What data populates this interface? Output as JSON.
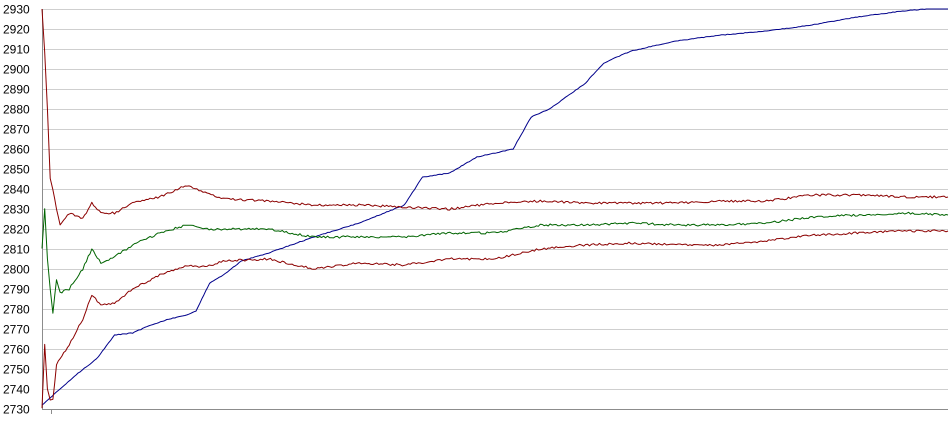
{
  "chart_data": {
    "type": "line",
    "title": "",
    "xlabel": "",
    "ylabel": "",
    "ylim": [
      2730,
      2930
    ],
    "yticks": [
      2930,
      2920,
      2910,
      2900,
      2890,
      2880,
      2870,
      2860,
      2850,
      2840,
      2830,
      2820,
      2810,
      2800,
      2790,
      2780,
      2770,
      2760,
      2750,
      2740,
      2730
    ],
    "grid": true,
    "legend": "none",
    "xlim": [
      0,
      1
    ],
    "series": [
      {
        "color": "#00008b",
        "points": [
          [
            0,
            2732
          ],
          [
            0.02,
            2740
          ],
          [
            0.04,
            2748
          ],
          [
            0.06,
            2755
          ],
          [
            0.08,
            2767
          ],
          [
            0.1,
            2768
          ],
          [
            0.12,
            2772
          ],
          [
            0.14,
            2775
          ],
          [
            0.16,
            2777
          ],
          [
            0.17,
            2779
          ],
          [
            0.185,
            2793
          ],
          [
            0.2,
            2797
          ],
          [
            0.22,
            2804
          ],
          [
            0.25,
            2808
          ],
          [
            0.3,
            2816
          ],
          [
            0.35,
            2823
          ],
          [
            0.4,
            2832
          ],
          [
            0.42,
            2846
          ],
          [
            0.45,
            2848
          ],
          [
            0.48,
            2856
          ],
          [
            0.52,
            2860
          ],
          [
            0.54,
            2876
          ],
          [
            0.56,
            2880
          ],
          [
            0.6,
            2893
          ],
          [
            0.62,
            2903
          ],
          [
            0.65,
            2909
          ],
          [
            0.7,
            2914
          ],
          [
            0.75,
            2917
          ],
          [
            0.8,
            2919
          ],
          [
            0.85,
            2922
          ],
          [
            0.9,
            2926
          ],
          [
            0.95,
            2929
          ],
          [
            1.0,
            2931
          ]
        ]
      },
      {
        "color": "#8b0000",
        "points": [
          [
            0,
            2930
          ],
          [
            0.003,
            2908
          ],
          [
            0.006,
            2880
          ],
          [
            0.009,
            2845
          ],
          [
            0.012,
            2840
          ],
          [
            0.016,
            2830
          ],
          [
            0.02,
            2822
          ],
          [
            0.03,
            2828
          ],
          [
            0.045,
            2825
          ],
          [
            0.055,
            2833
          ],
          [
            0.065,
            2828
          ],
          [
            0.08,
            2828
          ],
          [
            0.1,
            2833
          ],
          [
            0.13,
            2836
          ],
          [
            0.16,
            2842
          ],
          [
            0.18,
            2838
          ],
          [
            0.2,
            2835
          ],
          [
            0.25,
            2834
          ],
          [
            0.3,
            2832
          ],
          [
            0.35,
            2832
          ],
          [
            0.4,
            2831
          ],
          [
            0.45,
            2830
          ],
          [
            0.5,
            2833
          ],
          [
            0.55,
            2834
          ],
          [
            0.6,
            2833
          ],
          [
            0.65,
            2833
          ],
          [
            0.7,
            2833
          ],
          [
            0.75,
            2834
          ],
          [
            0.8,
            2834
          ],
          [
            0.85,
            2837
          ],
          [
            0.9,
            2837
          ],
          [
            0.95,
            2836
          ],
          [
            1.0,
            2836
          ]
        ]
      },
      {
        "color": "#006400",
        "points": [
          [
            0,
            2810
          ],
          [
            0.003,
            2830
          ],
          [
            0.006,
            2805
          ],
          [
            0.009,
            2790
          ],
          [
            0.012,
            2778
          ],
          [
            0.016,
            2795
          ],
          [
            0.02,
            2788
          ],
          [
            0.03,
            2790
          ],
          [
            0.045,
            2800
          ],
          [
            0.055,
            2810
          ],
          [
            0.065,
            2803
          ],
          [
            0.08,
            2806
          ],
          [
            0.1,
            2812
          ],
          [
            0.13,
            2818
          ],
          [
            0.16,
            2822
          ],
          [
            0.18,
            2820
          ],
          [
            0.2,
            2820
          ],
          [
            0.25,
            2820
          ],
          [
            0.3,
            2816
          ],
          [
            0.35,
            2816
          ],
          [
            0.4,
            2816
          ],
          [
            0.45,
            2818
          ],
          [
            0.5,
            2818
          ],
          [
            0.55,
            2822
          ],
          [
            0.6,
            2822
          ],
          [
            0.65,
            2823
          ],
          [
            0.7,
            2822
          ],
          [
            0.75,
            2822
          ],
          [
            0.8,
            2823
          ],
          [
            0.85,
            2826
          ],
          [
            0.9,
            2827
          ],
          [
            0.95,
            2828
          ],
          [
            1.0,
            2827
          ]
        ]
      },
      {
        "color": "#8b0000",
        "points": [
          [
            0,
            2730
          ],
          [
            0.003,
            2762
          ],
          [
            0.006,
            2740
          ],
          [
            0.009,
            2735
          ],
          [
            0.012,
            2735
          ],
          [
            0.016,
            2752
          ],
          [
            0.02,
            2755
          ],
          [
            0.03,
            2762
          ],
          [
            0.045,
            2775
          ],
          [
            0.055,
            2787
          ],
          [
            0.065,
            2782
          ],
          [
            0.08,
            2783
          ],
          [
            0.1,
            2790
          ],
          [
            0.13,
            2797
          ],
          [
            0.16,
            2802
          ],
          [
            0.18,
            2801
          ],
          [
            0.2,
            2804
          ],
          [
            0.25,
            2805
          ],
          [
            0.3,
            2800
          ],
          [
            0.35,
            2803
          ],
          [
            0.4,
            2802
          ],
          [
            0.45,
            2805
          ],
          [
            0.5,
            2805
          ],
          [
            0.55,
            2810
          ],
          [
            0.6,
            2812
          ],
          [
            0.65,
            2813
          ],
          [
            0.7,
            2812
          ],
          [
            0.75,
            2812
          ],
          [
            0.8,
            2814
          ],
          [
            0.85,
            2817
          ],
          [
            0.9,
            2818
          ],
          [
            0.95,
            2819
          ],
          [
            1.0,
            2819
          ]
        ]
      }
    ]
  }
}
